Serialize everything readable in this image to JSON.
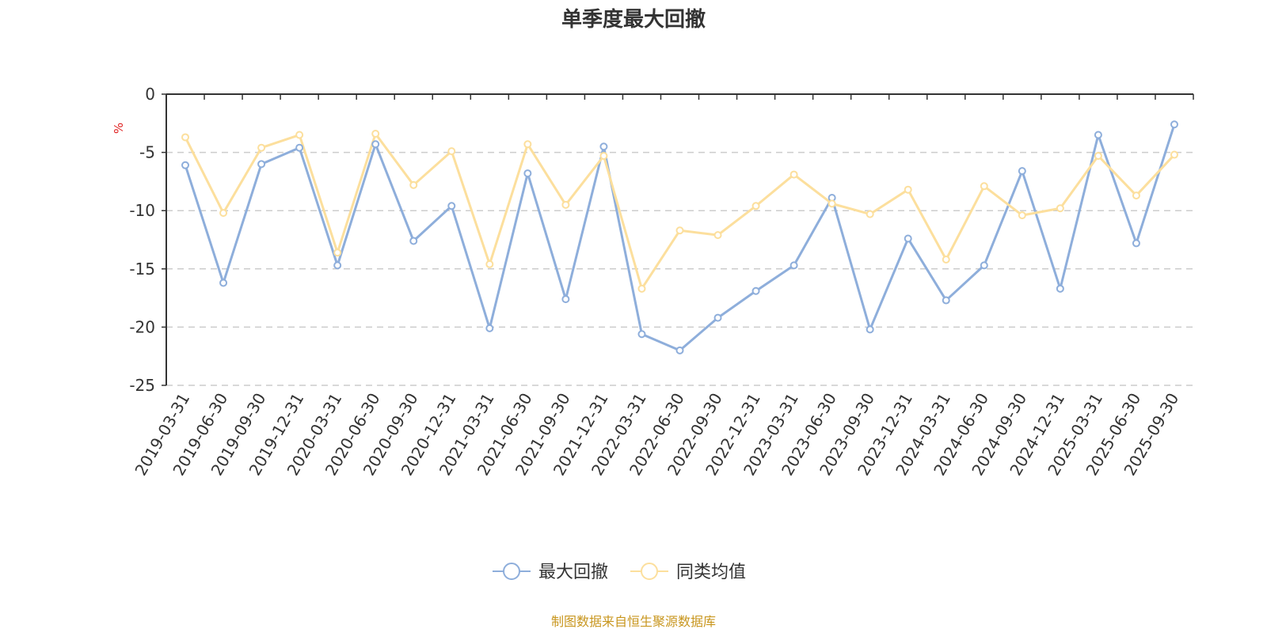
{
  "chart_data": {
    "type": "line",
    "title": "单季度最大回撤",
    "unit_label": "%",
    "ylim": [
      -25,
      0
    ],
    "yticks": [
      0,
      -5,
      -10,
      -15,
      -20,
      -25
    ],
    "grid": "horizontal dashed",
    "legend_position": "bottom-center",
    "x": [
      "2019-03-31",
      "2019-06-30",
      "2019-09-30",
      "2019-12-31",
      "2020-03-31",
      "2020-06-30",
      "2020-09-30",
      "2020-12-31",
      "2021-03-31",
      "2021-06-30",
      "2021-09-30",
      "2021-12-31",
      "2022-03-31",
      "2022-06-30",
      "2022-09-30",
      "2022-12-31",
      "2023-03-31",
      "2023-06-30",
      "2023-09-30",
      "2023-12-31",
      "2024-03-31",
      "2024-06-30",
      "2024-09-30",
      "2024-12-31",
      "2025-03-31",
      "2025-06-30",
      "2025-09-30"
    ],
    "series": [
      {
        "name": "最大回撤",
        "color": "#8eaedb",
        "values": [
          -6.1,
          -16.2,
          -6.0,
          -4.6,
          -14.7,
          -4.3,
          -12.6,
          -9.6,
          -20.1,
          -6.8,
          -17.6,
          -4.5,
          -20.6,
          -22.0,
          -19.2,
          -16.9,
          -14.7,
          -8.9,
          -20.2,
          -12.4,
          -17.7,
          -14.7,
          -6.6,
          -16.7,
          -3.5,
          -12.8,
          -2.6
        ]
      },
      {
        "name": "同类均值",
        "color": "#fcdf9d",
        "values": [
          -3.7,
          -10.2,
          -4.6,
          -3.5,
          -13.6,
          -3.4,
          -7.8,
          -4.9,
          -14.6,
          -4.3,
          -9.5,
          -5.3,
          -16.7,
          -11.7,
          -12.1,
          -9.6,
          -6.9,
          -9.4,
          -10.3,
          -8.2,
          -14.2,
          -7.9,
          -10.4,
          -9.8,
          -5.3,
          -8.7,
          -5.2
        ]
      }
    ],
    "source_text": "制图数据来自恒生聚源数据库",
    "source_color": "#c8961e",
    "unit_color": "#e02020"
  }
}
